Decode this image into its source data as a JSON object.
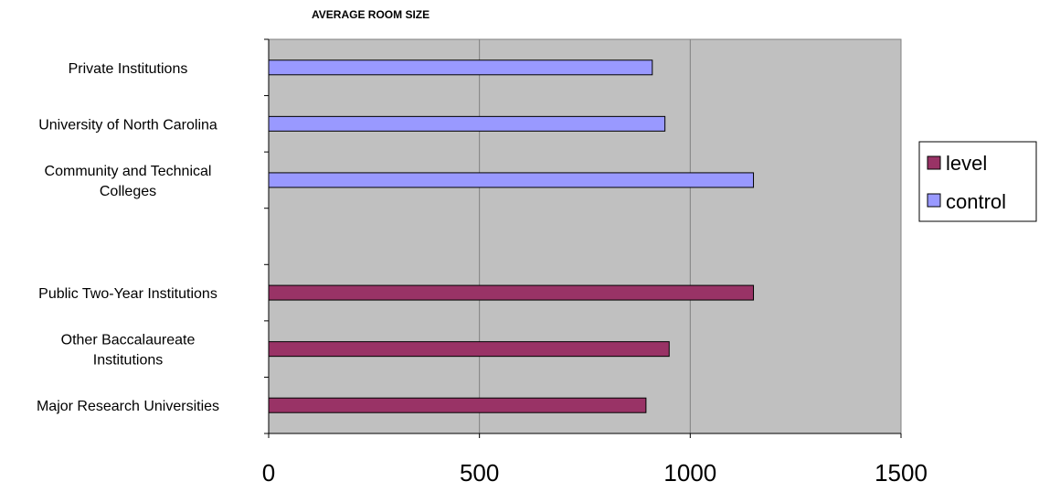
{
  "chart_data": {
    "type": "bar",
    "orientation": "horizontal",
    "title": "AVERAGE ROOM SIZE",
    "xlabel": "",
    "ylabel": "",
    "xlim": [
      0,
      1500
    ],
    "x_ticks": [
      "0",
      "500",
      "1000",
      "1500"
    ],
    "grid": "vertical gridlines",
    "legend_position": "right",
    "categories": [
      [
        "Private Institutions"
      ],
      [
        "University of North Carolina"
      ],
      [
        "Community and Technical",
        "Colleges"
      ],
      [],
      [
        "Public Two-Year Institutions"
      ],
      [
        "Other Baccalaureate",
        "Institutions"
      ],
      [
        "Major Research Universities"
      ]
    ],
    "series": [
      {
        "name": "level",
        "color": "#993366",
        "values": [
          null,
          null,
          null,
          null,
          1150,
          950,
          895
        ]
      },
      {
        "name": "control",
        "color": "#9999ff",
        "values": [
          910,
          940,
          1150,
          null,
          null,
          null,
          null
        ]
      }
    ],
    "legend": [
      {
        "label": "level",
        "color": "#993366"
      },
      {
        "label": "control",
        "color": "#9999ff"
      }
    ],
    "plot_background": "#c0c0c0"
  }
}
